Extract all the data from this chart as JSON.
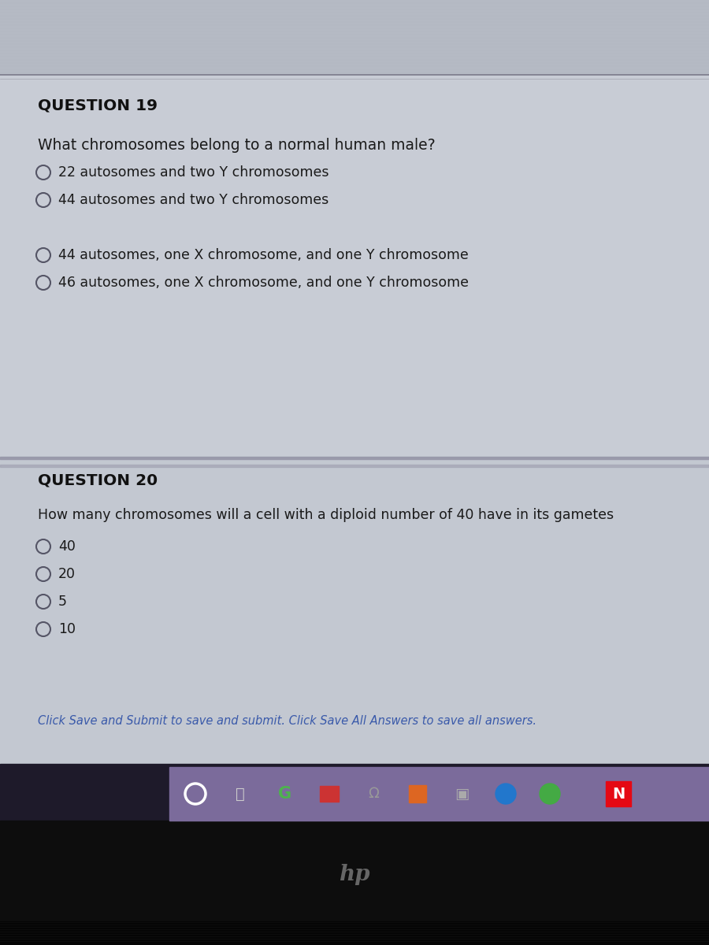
{
  "bg_content": "#c8ccd5",
  "bg_top_strip": "#b5bac4",
  "bg_q19": "#c8ccd5",
  "bg_q20": "#c3c8d1",
  "bg_taskbar": "#7b6b9b",
  "bg_dark": "#1a1520",
  "bg_black": "#0d0d0d",
  "bg_darker_strip": "#1e1a2a",
  "q19_label": "QUESTION 19",
  "q19_question": "What chromosomes belong to a normal human male?",
  "q19_options": [
    "22 autosomes and two Y chromosomes",
    "44 autosomes and two Y chromosomes",
    "44 autosomes, one X chromosome, and one Y chromosome",
    "46 autosomes, one X chromosome, and one Y chromosome"
  ],
  "q20_label": "QUESTION 20",
  "q20_question": "How many chromosomes will a cell with a diploid number of 40 have in its gametes",
  "q20_options": [
    "40",
    "20",
    "5",
    "10"
  ],
  "footer_text": "Click Save and Submit to save and submit. Click Save All Answers to save all answers.",
  "text_color": "#1a1a1a",
  "label_color": "#111111",
  "footer_color": "#3a5aaa",
  "circle_color": "#555566",
  "line_color": "#9999aa",
  "top_line_color": "#7a7a8a"
}
